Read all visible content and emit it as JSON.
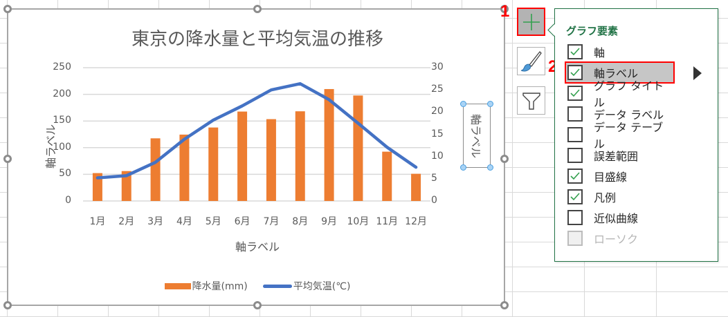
{
  "chart": {
    "title": "東京の降水量と平均気温の推移",
    "y_left_ticks": [
      "250",
      "200",
      "150",
      "100",
      "50",
      "0"
    ],
    "y_right_ticks": [
      "30",
      "25",
      "20",
      "15",
      "10",
      "5",
      "0"
    ],
    "x_ticks": [
      "1月",
      "2月",
      "3月",
      "4月",
      "5月",
      "6月",
      "7月",
      "8月",
      "9月",
      "10月",
      "11月",
      "12月"
    ],
    "axis_title_left": "軸ラベル",
    "axis_title_right": "軸ラベル",
    "axis_title_bottom": "軸ラベル",
    "legend": [
      {
        "label": "降水量(mm)",
        "color": "#ED7D31",
        "kind": "bar"
      },
      {
        "label": "平均気温(℃)",
        "color": "#4472C4",
        "kind": "line"
      }
    ]
  },
  "chart_data": {
    "type": "bar",
    "title": "東京の降水量と平均気温の推移",
    "categories": [
      "1月",
      "2月",
      "3月",
      "4月",
      "5月",
      "6月",
      "7月",
      "8月",
      "9月",
      "10月",
      "11月",
      "12月"
    ],
    "series": [
      {
        "name": "降水量(mm)",
        "type": "bar",
        "axis": "left",
        "color": "#ED7D31",
        "values": [
          52.3,
          56.1,
          117.5,
          124.5,
          137.8,
          167.7,
          153.5,
          168.2,
          209.9,
          197.8,
          92.5,
          51.0
        ]
      },
      {
        "name": "平均気温(℃)",
        "type": "line",
        "axis": "right",
        "color": "#4472C4",
        "values": [
          5.2,
          5.7,
          8.7,
          13.9,
          18.2,
          21.4,
          25.0,
          26.4,
          22.8,
          17.5,
          12.1,
          7.6
        ]
      }
    ],
    "xlabel": "軸ラベル",
    "ylabel": "軸ラベル",
    "y2label": "軸ラベル",
    "ylim": [
      0,
      250
    ],
    "y2lim": [
      0,
      30
    ],
    "grid": true,
    "legend_position": "bottom"
  },
  "side_buttons": {
    "chart_elements": "chart-elements-plus",
    "chart_styles": "chart-styles-brush",
    "chart_filters": "chart-filters-funnel"
  },
  "markers": {
    "one": "1",
    "two": "2"
  },
  "popup": {
    "title": "グラフ要素",
    "items": [
      {
        "label": "軸",
        "checked": true
      },
      {
        "label": "軸ラベル",
        "checked": true
      },
      {
        "label": "グラフ タイトル",
        "checked": true
      },
      {
        "label": "データ ラベル",
        "checked": false
      },
      {
        "label": "データ テーブル",
        "checked": false
      },
      {
        "label": "誤差範囲",
        "checked": false
      },
      {
        "label": "目盛線",
        "checked": true
      },
      {
        "label": "凡例",
        "checked": true
      },
      {
        "label": "近似曲線",
        "checked": false
      },
      {
        "label": "ローソク",
        "checked": false,
        "disabled": true
      }
    ]
  }
}
